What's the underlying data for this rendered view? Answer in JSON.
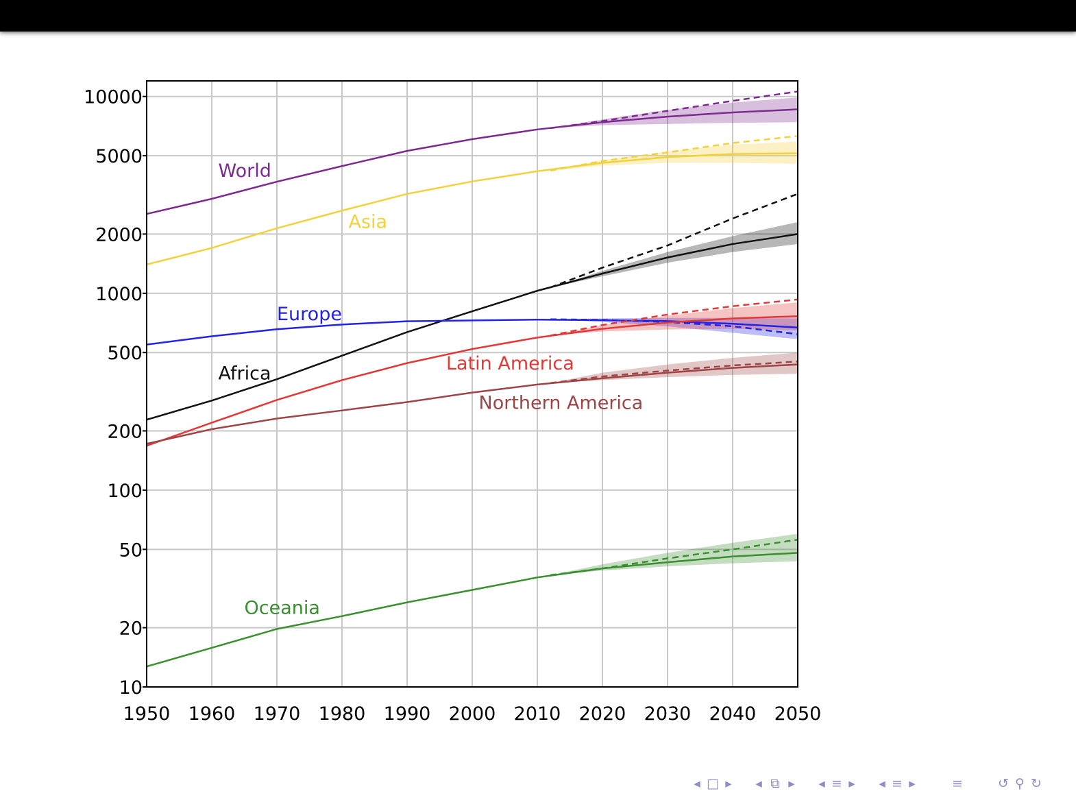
{
  "colors": {
    "World": "#7d2a90",
    "Asia": "#f2d23c",
    "Africa": "#111111",
    "Europe": "#2323e6",
    "Latin America": "#e23838",
    "Northern America": "#9e4444",
    "Oceania": "#3a8f2e"
  },
  "nav_icons": [
    "triangle-left-icon",
    "frame-icon",
    "triangle-right-icon",
    "triangle-left-icon",
    "subsection-icon",
    "triangle-right-icon",
    "triangle-left-icon",
    "section-icon",
    "triangle-right-icon",
    "triangle-left-icon",
    "align-icon",
    "triangle-right-icon",
    "align-icon",
    "search-back-icon",
    "search-icon",
    "search-forward-icon"
  ],
  "chart_data": {
    "type": "line",
    "title": "",
    "xlabel": "",
    "ylabel": "",
    "xlim": [
      1950,
      2050
    ],
    "ylim": [
      10,
      12000
    ],
    "yscale": "log",
    "grid": true,
    "x_ticks": [
      "1950",
      "1960",
      "1970",
      "1980",
      "1990",
      "2000",
      "2010",
      "2020",
      "2030",
      "2040",
      "2050"
    ],
    "y_ticks": [
      {
        "value": 10,
        "label": "10"
      },
      {
        "value": 20,
        "label": "20"
      },
      {
        "value": 50,
        "label": "50"
      },
      {
        "value": 100,
        "label": "100"
      },
      {
        "value": 200,
        "label": "200"
      },
      {
        "value": 500,
        "label": "500"
      },
      {
        "value": 1000,
        "label": "1000"
      },
      {
        "value": 2000,
        "label": "2000"
      },
      {
        "value": 5000,
        "label": "5000"
      },
      {
        "value": 10000,
        "label": "10000"
      }
    ],
    "series": [
      {
        "name": "World",
        "label_at": [
          1961,
          3900
        ],
        "x": [
          1950,
          1960,
          1970,
          1980,
          1990,
          2000,
          2010,
          2020,
          2030,
          2040,
          2050
        ],
        "values": [
          2530,
          3020,
          3690,
          4430,
          5290,
          6070,
          6800,
          7400,
          7900,
          8300,
          8600
        ],
        "projection_start": 2012,
        "projection_x": [
          2012,
          2020,
          2030,
          2040,
          2050
        ],
        "projection_values": [
          6900,
          7500,
          8450,
          9500,
          10600
        ],
        "band_low": [
          6900,
          7150,
          7250,
          7350,
          7400
        ],
        "band_high": [
          6900,
          7650,
          8550,
          9300,
          9900
        ]
      },
      {
        "name": "Asia",
        "label_at": [
          1981,
          2150
        ],
        "x": [
          1950,
          1960,
          1970,
          1980,
          1990,
          2000,
          2010,
          2020,
          2030,
          2040,
          2050
        ],
        "values": [
          1400,
          1700,
          2140,
          2630,
          3200,
          3700,
          4170,
          4600,
          4920,
          5100,
          5150
        ],
        "projection_start": 2012,
        "projection_x": [
          2012,
          2020,
          2030,
          2040,
          2050
        ],
        "projection_values": [
          4200,
          4700,
          5200,
          5800,
          6300
        ],
        "band_low": [
          4200,
          4450,
          4600,
          4600,
          4550
        ],
        "band_high": [
          4200,
          4750,
          5250,
          5700,
          5900
        ]
      },
      {
        "name": "Africa",
        "label_at": [
          1961,
          365
        ],
        "x": [
          1950,
          1960,
          1970,
          1980,
          1990,
          2000,
          2010,
          2020,
          2030,
          2040,
          2050
        ],
        "values": [
          228,
          285,
          366,
          482,
          635,
          810,
          1030,
          1260,
          1520,
          1780,
          2000
        ],
        "projection_start": 2012,
        "projection_x": [
          2012,
          2020,
          2030,
          2040,
          2050
        ],
        "projection_values": [
          1070,
          1350,
          1750,
          2400,
          3200
        ],
        "band_low": [
          1070,
          1220,
          1430,
          1620,
          1780
        ],
        "band_high": [
          1070,
          1300,
          1620,
          1950,
          2300
        ]
      },
      {
        "name": "Europe",
        "label_at": [
          1970,
          730
        ],
        "x": [
          1950,
          1960,
          1970,
          1980,
          1990,
          2000,
          2010,
          2020,
          2030,
          2040,
          2050
        ],
        "values": [
          549,
          605,
          657,
          694,
          721,
          728,
          735,
          730,
          722,
          700,
          670
        ],
        "projection_start": 2012,
        "projection_x": [
          2012,
          2020,
          2030,
          2040,
          2050
        ],
        "projection_values": [
          738,
          733,
          715,
          680,
          620
        ],
        "band_low": [
          738,
          715,
          680,
          630,
          585
        ],
        "band_high": [
          738,
          745,
          750,
          750,
          745
        ]
      },
      {
        "name": "Latin America",
        "label_at": [
          1996,
          410
        ],
        "x": [
          1950,
          1960,
          1970,
          1980,
          1990,
          2000,
          2010,
          2020,
          2030,
          2040,
          2050
        ],
        "values": [
          168,
          220,
          287,
          362,
          442,
          521,
          596,
          660,
          710,
          745,
          765
        ],
        "projection_start": 2012,
        "projection_x": [
          2012,
          2020,
          2030,
          2040,
          2050
        ],
        "projection_values": [
          610,
          690,
          780,
          860,
          930
        ],
        "band_low": [
          610,
          640,
          655,
          660,
          650
        ],
        "band_high": [
          610,
          690,
          770,
          840,
          900
        ]
      },
      {
        "name": "Northern America",
        "label_at": [
          2001,
          258
        ],
        "x": [
          1950,
          1960,
          1970,
          1980,
          1990,
          2000,
          2010,
          2020,
          2030,
          2040,
          2050
        ],
        "values": [
          172,
          204,
          231,
          254,
          280,
          313,
          344,
          370,
          395,
          418,
          435
        ],
        "projection_start": 2012,
        "projection_x": [
          2012,
          2020,
          2030,
          2040,
          2050
        ],
        "projection_values": [
          350,
          378,
          405,
          430,
          450
        ],
        "band_low": [
          350,
          362,
          375,
          385,
          390
        ],
        "band_high": [
          350,
          395,
          435,
          470,
          500
        ]
      },
      {
        "name": "Oceania",
        "label_at": [
          1965,
          23.5
        ],
        "x": [
          1950,
          1960,
          1970,
          1980,
          1990,
          2000,
          2010,
          2020,
          2030,
          2040,
          2050
        ],
        "values": [
          12.7,
          15.8,
          19.7,
          22.9,
          26.9,
          31.1,
          36,
          40,
          43,
          46,
          48
        ],
        "projection_start": 2012,
        "projection_x": [
          2012,
          2020,
          2030,
          2040,
          2050
        ],
        "projection_values": [
          37,
          40,
          45,
          50,
          56
        ],
        "band_low": [
          37,
          39,
          41,
          42.5,
          43.5
        ],
        "band_high": [
          37,
          42,
          48,
          54,
          60
        ]
      }
    ]
  }
}
